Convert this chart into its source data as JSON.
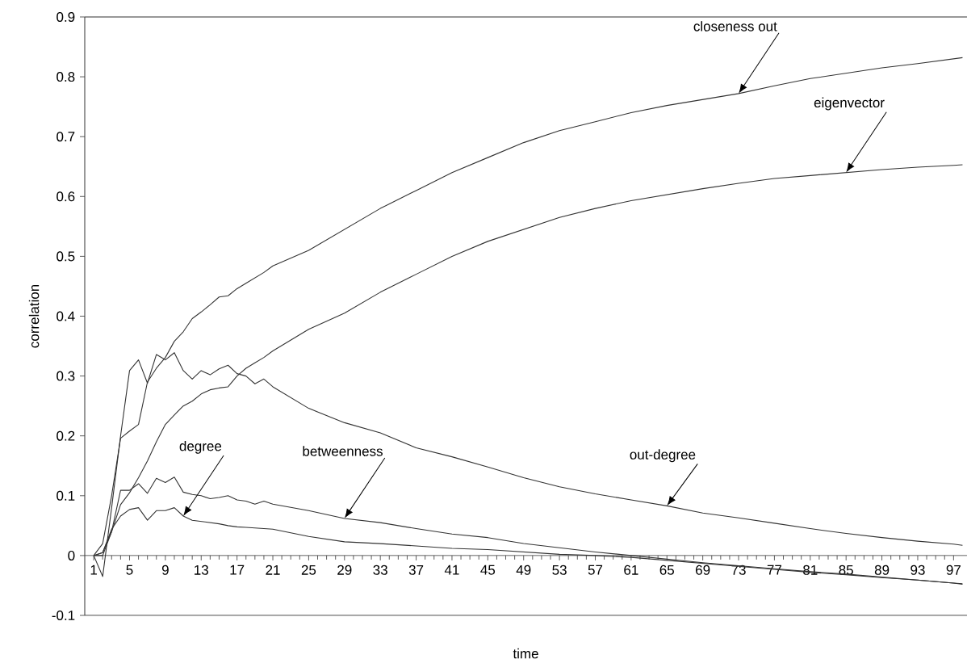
{
  "chart_data": {
    "type": "line",
    "xlabel": "time",
    "ylabel": "correlation",
    "x": [
      1,
      2,
      3,
      4,
      5,
      6,
      7,
      8,
      9,
      10,
      11,
      12,
      13,
      14,
      15,
      16,
      17,
      18,
      19,
      20,
      21,
      25,
      29,
      33,
      37,
      41,
      45,
      49,
      53,
      57,
      61,
      65,
      69,
      73,
      77,
      81,
      85,
      89,
      93,
      97,
      98
    ],
    "series": [
      {
        "name": "closeness out",
        "color": "#333333",
        "values": [
          0,
          0.02,
          0.1,
          0.196,
          0.208,
          0.219,
          0.29,
          0.313,
          0.331,
          0.358,
          0.374,
          0.396,
          0.407,
          0.419,
          0.432,
          0.434,
          0.446,
          0.455,
          0.464,
          0.473,
          0.484,
          0.51,
          0.545,
          0.58,
          0.61,
          0.64,
          0.665,
          0.69,
          0.71,
          0.725,
          0.74,
          0.752,
          0.762,
          0.772,
          0.785,
          0.797,
          0.806,
          0.815,
          0.822,
          0.83,
          0.832
        ]
      },
      {
        "name": "eigenvector",
        "color": "#333333",
        "values": [
          0,
          0,
          0.04,
          0.085,
          0.105,
          0.13,
          0.158,
          0.19,
          0.219,
          0.235,
          0.25,
          0.258,
          0.27,
          0.277,
          0.28,
          0.282,
          0.3,
          0.313,
          0.322,
          0.331,
          0.342,
          0.378,
          0.405,
          0.44,
          0.47,
          0.5,
          0.525,
          0.545,
          0.565,
          0.58,
          0.593,
          0.603,
          0.613,
          0.622,
          0.63,
          0.635,
          0.64,
          0.645,
          0.649,
          0.652,
          0.653
        ]
      },
      {
        "name": "out-degree",
        "color": "#333333",
        "values": [
          0,
          -0.035,
          0.08,
          0.2,
          0.309,
          0.327,
          0.288,
          0.336,
          0.327,
          0.339,
          0.309,
          0.295,
          0.309,
          0.302,
          0.312,
          0.318,
          0.304,
          0.3,
          0.287,
          0.295,
          0.282,
          0.246,
          0.222,
          0.205,
          0.18,
          0.165,
          0.148,
          0.13,
          0.115,
          0.103,
          0.093,
          0.083,
          0.071,
          0.063,
          0.054,
          0.045,
          0.037,
          0.03,
          0.024,
          0.019,
          0.017
        ]
      },
      {
        "name": "betweenness",
        "color": "#333333",
        "values": [
          0,
          0.005,
          0.04,
          0.109,
          0.109,
          0.12,
          0.104,
          0.129,
          0.122,
          0.131,
          0.106,
          0.102,
          0.1,
          0.095,
          0.097,
          0.1,
          0.093,
          0.091,
          0.086,
          0.091,
          0.086,
          0.075,
          0.062,
          0.055,
          0.045,
          0.036,
          0.03,
          0.02,
          0.013,
          0.006,
          0.0,
          -0.006,
          -0.012,
          -0.017,
          -0.022,
          -0.027,
          -0.031,
          -0.036,
          -0.041,
          -0.046,
          -0.047
        ]
      },
      {
        "name": "degree",
        "color": "#333333",
        "values": [
          0,
          0.005,
          0.044,
          0.066,
          0.077,
          0.08,
          0.059,
          0.075,
          0.075,
          0.08,
          0.066,
          0.059,
          0.057,
          0.055,
          0.053,
          0.05,
          0.048,
          0.047,
          0.046,
          0.045,
          0.044,
          0.032,
          0.023,
          0.02,
          0.016,
          0.012,
          0.01,
          0.006,
          0.002,
          0.0,
          -0.003,
          -0.008,
          -0.013,
          -0.018,
          -0.023,
          -0.028,
          -0.032,
          -0.037,
          -0.041,
          -0.046,
          -0.048
        ]
      }
    ],
    "xlim": [
      0,
      98.5
    ],
    "ylim": [
      -0.1,
      0.9
    ],
    "xticks": [
      1,
      5,
      9,
      13,
      17,
      21,
      25,
      29,
      33,
      37,
      41,
      45,
      49,
      53,
      57,
      61,
      65,
      69,
      73,
      77,
      81,
      85,
      89,
      93,
      97
    ],
    "yticks": [
      -0.1,
      0,
      0.1,
      0.2,
      0.3,
      0.4,
      0.5,
      0.6,
      0.7,
      0.8,
      0.9
    ],
    "grid": false,
    "legend": false,
    "marker": "none",
    "line_style": "solid"
  }
}
